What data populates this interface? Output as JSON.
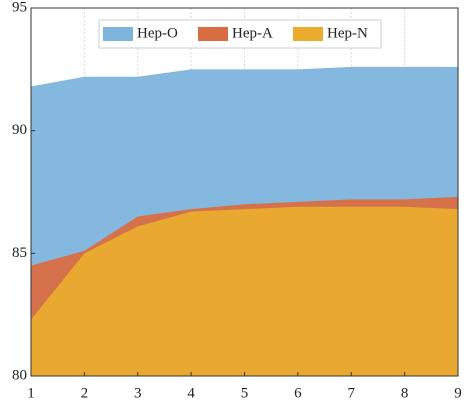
{
  "chart_data": {
    "type": "area",
    "x": [
      1,
      2,
      3,
      4,
      5,
      6,
      7,
      8,
      9
    ],
    "series": [
      {
        "name": "Hep-O",
        "color": "#7db4dc",
        "values": [
          91.8,
          92.2,
          92.2,
          92.5,
          92.5,
          92.5,
          92.6,
          92.6,
          92.6
        ]
      },
      {
        "name": "Hep-A",
        "color": "#d96d42",
        "values": [
          84.5,
          85.1,
          86.5,
          86.8,
          87.0,
          87.1,
          87.2,
          87.2,
          87.3
        ]
      },
      {
        "name": "Hep-N",
        "color": "#eaab2e",
        "values": [
          82.3,
          85.0,
          86.1,
          86.7,
          86.8,
          86.9,
          86.9,
          86.9,
          86.8
        ]
      }
    ],
    "xlim": [
      1,
      9
    ],
    "xticks": [
      1,
      2,
      3,
      4,
      5,
      6,
      7,
      8,
      9
    ],
    "ylim": [
      80,
      95
    ],
    "yticks": [
      80,
      85,
      90,
      95
    ],
    "grid": true,
    "legend": "top"
  }
}
